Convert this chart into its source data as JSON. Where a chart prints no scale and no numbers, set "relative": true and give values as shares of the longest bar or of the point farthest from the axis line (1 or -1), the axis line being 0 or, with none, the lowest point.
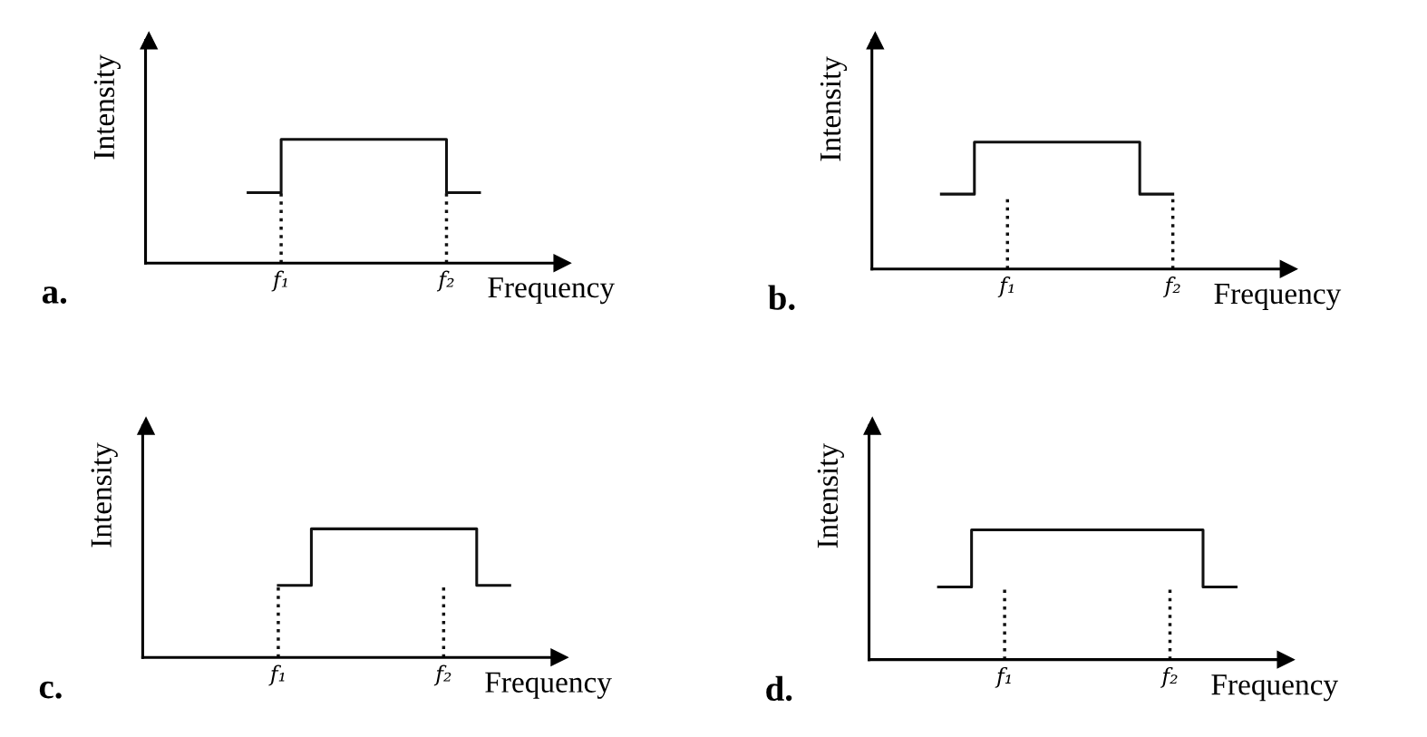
{
  "chart_data": [
    {
      "type": "step",
      "title": "a.",
      "xlabel": "Frequency",
      "ylabel": "Intensity",
      "relative": true,
      "tick_labels": "x",
      "categories": [
        null,
        null,
        null,
        null,
        "f₁",
        null,
        null,
        null,
        null,
        "f₂",
        null,
        null,
        null
      ],
      "series": [
        {
          "color": "#111111",
          "values": [
            null,
            null,
            null,
            0.57,
            1,
            1,
            1,
            1,
            1,
            0.57,
            0.57,
            null,
            null
          ]
        }
      ],
      "ref_lines": [
        {
          "axis": "x",
          "value": "f₁",
          "line_style": "dotted",
          "color": "#111111"
        },
        {
          "axis": "x",
          "value": "f₂",
          "line_style": "dotted",
          "color": "#111111"
        }
      ]
    },
    {
      "type": "step",
      "title": "b.",
      "xlabel": "Frequency",
      "ylabel": "Intensity",
      "relative": true,
      "tick_labels": "x",
      "categories": [
        null,
        null,
        null,
        null,
        "f₁",
        null,
        null,
        null,
        null,
        "f₂",
        null,
        null,
        null
      ],
      "series": [
        {
          "color": "#111111",
          "values": [
            null,
            null,
            0.59,
            1,
            1,
            1,
            1,
            1,
            0.59,
            0.59,
            null,
            null,
            null
          ]
        }
      ],
      "ref_lines": [
        {
          "axis": "x",
          "value": "f₁",
          "line_style": "dotted",
          "color": "#111111"
        },
        {
          "axis": "x",
          "value": "f₂",
          "line_style": "dotted",
          "color": "#111111"
        }
      ]
    },
    {
      "type": "step",
      "title": "c.",
      "xlabel": "Frequency",
      "ylabel": "Intensity",
      "relative": true,
      "tick_labels": "x",
      "categories": [
        null,
        null,
        null,
        null,
        "f₁",
        null,
        null,
        null,
        null,
        "f₂",
        null,
        null,
        null
      ],
      "series": [
        {
          "color": "#111111",
          "values": [
            null,
            null,
            null,
            null,
            0.56,
            1,
            1,
            1,
            1,
            1,
            0.56,
            0.56,
            null
          ]
        }
      ],
      "ref_lines": [
        {
          "axis": "x",
          "value": "f₁",
          "line_style": "dotted",
          "color": "#111111"
        },
        {
          "axis": "x",
          "value": "f₂",
          "line_style": "dotted",
          "color": "#111111"
        }
      ]
    },
    {
      "type": "step",
      "title": "d.",
      "xlabel": "Frequency",
      "ylabel": "Intensity",
      "relative": true,
      "tick_labels": "x",
      "categories": [
        null,
        null,
        null,
        null,
        "f₁",
        null,
        null,
        null,
        null,
        "f₂",
        null,
        null,
        null
      ],
      "series": [
        {
          "color": "#111111",
          "values": [
            null,
            null,
            0.56,
            1,
            1,
            1,
            1,
            1,
            1,
            1,
            0.56,
            0.56,
            null
          ]
        }
      ],
      "ref_lines": [
        {
          "axis": "x",
          "value": "f₁",
          "line_style": "dotted",
          "color": "#111111"
        },
        {
          "axis": "x",
          "value": "f₂",
          "line_style": "dotted",
          "color": "#111111"
        }
      ]
    }
  ]
}
